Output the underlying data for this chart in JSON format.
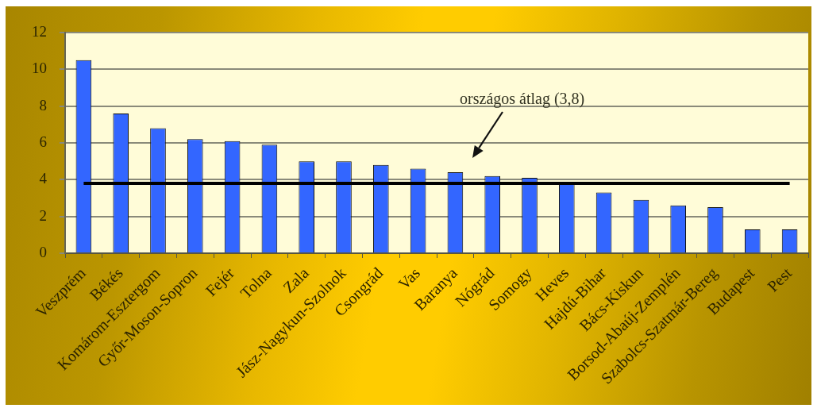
{
  "chart_data": {
    "type": "bar",
    "categories": [
      "Veszprém",
      "Békés",
      "Komárom-Esztergom",
      "Győr-Moson-Sopron",
      "Fejér",
      "Tolna",
      "Zala",
      "Jász-Nagykun-Szolnok",
      "Csongrád",
      "Vas",
      "Baranya",
      "Nógrád",
      "Somogy",
      "Heves",
      "Hajdú-Bihar",
      "Bács-Kiskun",
      "Borsod-Abaúj-Zemplén",
      "Szabolcs-Szatmár-Bereg",
      "Budapest",
      "Pest"
    ],
    "values": [
      10.5,
      7.6,
      6.8,
      6.2,
      6.1,
      5.9,
      5.0,
      5.0,
      4.8,
      4.6,
      4.4,
      4.2,
      4.1,
      3.8,
      3.3,
      2.9,
      2.6,
      2.5,
      1.3,
      1.3
    ],
    "color": "#3366ff",
    "ylim": [
      0,
      12
    ],
    "yticks": [
      0,
      2,
      4,
      6,
      8,
      10,
      12
    ],
    "grid": "y",
    "ref_lines": [
      {
        "axis": "y",
        "value": 3.8,
        "color": "#000000"
      }
    ],
    "annotations": [
      "országos átlag (3,8)"
    ]
  }
}
